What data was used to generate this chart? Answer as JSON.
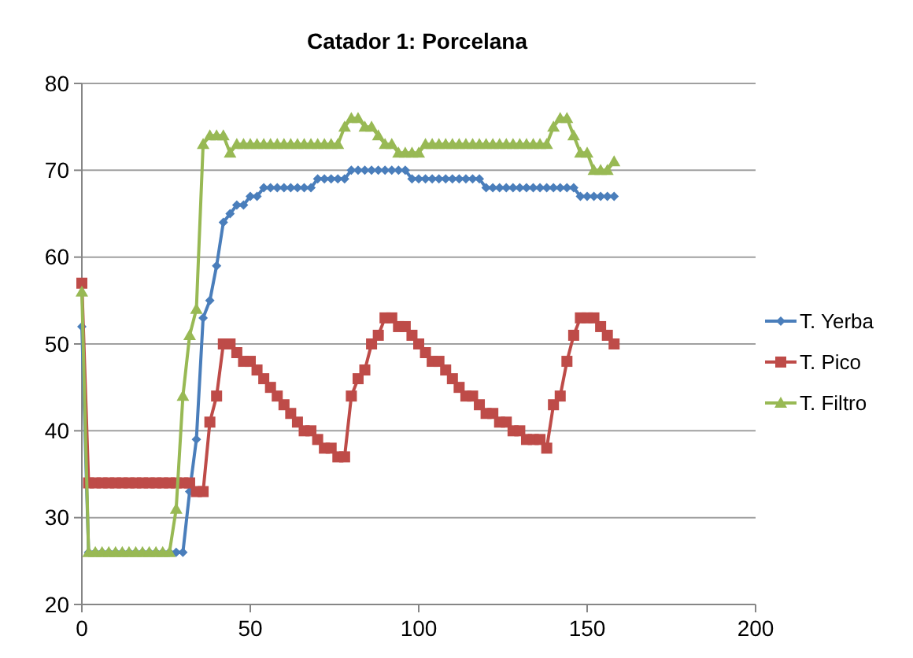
{
  "chart_data": {
    "type": "line",
    "title": "Catador 1: Porcelana",
    "x": [
      0,
      2,
      4,
      6,
      8,
      10,
      12,
      14,
      16,
      18,
      20,
      22,
      24,
      26,
      28,
      30,
      32,
      34,
      36,
      38,
      40,
      42,
      44,
      46,
      48,
      50,
      52,
      54,
      56,
      58,
      60,
      62,
      64,
      66,
      68,
      70,
      72,
      74,
      76,
      78,
      80,
      82,
      84,
      86,
      88,
      90,
      92,
      94,
      96,
      98,
      100,
      102,
      104,
      106,
      108,
      110,
      112,
      114,
      116,
      118,
      120,
      122,
      124,
      126,
      128,
      130,
      132,
      134,
      136,
      138,
      140,
      142,
      144,
      146,
      148,
      150,
      152,
      154,
      156,
      158
    ],
    "series": [
      {
        "name": "T. Yerba",
        "color": "#4a7ebb",
        "marker": "diamond",
        "values": [
          52,
          26,
          26,
          26,
          26,
          26,
          26,
          26,
          26,
          26,
          26,
          26,
          26,
          26,
          26,
          26,
          33,
          39,
          53,
          55,
          59,
          64,
          65,
          66,
          66,
          67,
          67,
          68,
          68,
          68,
          68,
          68,
          68,
          68,
          68,
          69,
          69,
          69,
          69,
          69,
          70,
          70,
          70,
          70,
          70,
          70,
          70,
          70,
          70,
          69,
          69,
          69,
          69,
          69,
          69,
          69,
          69,
          69,
          69,
          69,
          68,
          68,
          68,
          68,
          68,
          68,
          68,
          68,
          68,
          68,
          68,
          68,
          68,
          68,
          67,
          67,
          67,
          67,
          67,
          67
        ]
      },
      {
        "name": "T. Pico",
        "color": "#be4b48",
        "marker": "square",
        "values": [
          57,
          34,
          34,
          34,
          34,
          34,
          34,
          34,
          34,
          34,
          34,
          34,
          34,
          34,
          34,
          34,
          34,
          33,
          33,
          41,
          44,
          50,
          50,
          49,
          48,
          48,
          47,
          46,
          45,
          44,
          43,
          42,
          41,
          40,
          40,
          39,
          38,
          38,
          37,
          37,
          44,
          46,
          47,
          50,
          51,
          53,
          53,
          52,
          52,
          51,
          50,
          49,
          48,
          48,
          47,
          46,
          45,
          44,
          44,
          43,
          42,
          42,
          41,
          41,
          40,
          40,
          39,
          39,
          39,
          38,
          43,
          44,
          48,
          51,
          53,
          53,
          53,
          52,
          51,
          50
        ]
      },
      {
        "name": "T. Filtro",
        "color": "#98b954",
        "marker": "triangle",
        "values": [
          56,
          26,
          26,
          26,
          26,
          26,
          26,
          26,
          26,
          26,
          26,
          26,
          26,
          26,
          31,
          44,
          51,
          54,
          73,
          74,
          74,
          74,
          72,
          73,
          73,
          73,
          73,
          73,
          73,
          73,
          73,
          73,
          73,
          73,
          73,
          73,
          73,
          73,
          73,
          75,
          76,
          76,
          75,
          75,
          74,
          73,
          73,
          72,
          72,
          72,
          72,
          73,
          73,
          73,
          73,
          73,
          73,
          73,
          73,
          73,
          73,
          73,
          73,
          73,
          73,
          73,
          73,
          73,
          73,
          73,
          75,
          76,
          76,
          74,
          72,
          72,
          70,
          70,
          70,
          71
        ]
      }
    ],
    "xlim": [
      0,
      200
    ],
    "xticks": [
      0,
      50,
      100,
      150,
      200
    ],
    "ylim": [
      20,
      80
    ],
    "yticks": [
      20,
      30,
      40,
      50,
      60,
      70,
      80
    ],
    "grid": "y",
    "legend": "right",
    "line_style": "solid"
  }
}
